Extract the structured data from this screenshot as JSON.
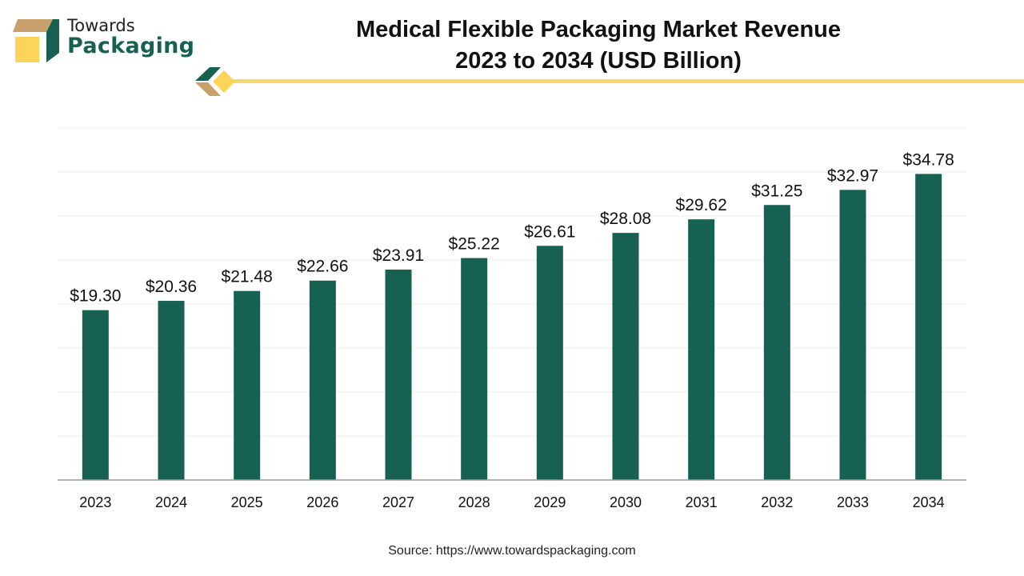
{
  "brand": {
    "line1": "Towards",
    "line2": "Packaging"
  },
  "title_line1": "Medical Flexible Packaging Market Revenue",
  "title_line2": "2023 to 2034 (USD Billion)",
  "source": "Source: https://www.towardspackaging.com",
  "colors": {
    "bar": "#176152",
    "accent_line": "#f5d768",
    "brand_green": "#176152",
    "brand_tan": "#c8a06b",
    "brand_yellow": "#fcd45a"
  },
  "chart_data": {
    "type": "bar",
    "title": "Medical Flexible Packaging Market Revenue 2023 to 2034 (USD Billion)",
    "categories": [
      "2023",
      "2024",
      "2025",
      "2026",
      "2027",
      "2028",
      "2029",
      "2030",
      "2031",
      "2032",
      "2033",
      "2034"
    ],
    "values": [
      19.3,
      20.36,
      21.48,
      22.66,
      23.91,
      25.22,
      26.61,
      28.08,
      29.62,
      31.25,
      32.97,
      34.78
    ],
    "labels": [
      "$19.30",
      "$20.36",
      "$21.48",
      "$22.66",
      "$23.91",
      "$25.22",
      "$26.61",
      "$28.08",
      "$29.62",
      "$31.25",
      "$32.97",
      "$34.78"
    ],
    "ylim": [
      0,
      40
    ],
    "grid": true,
    "ygrid_step": 5,
    "y_tick_labels_shown": false
  }
}
